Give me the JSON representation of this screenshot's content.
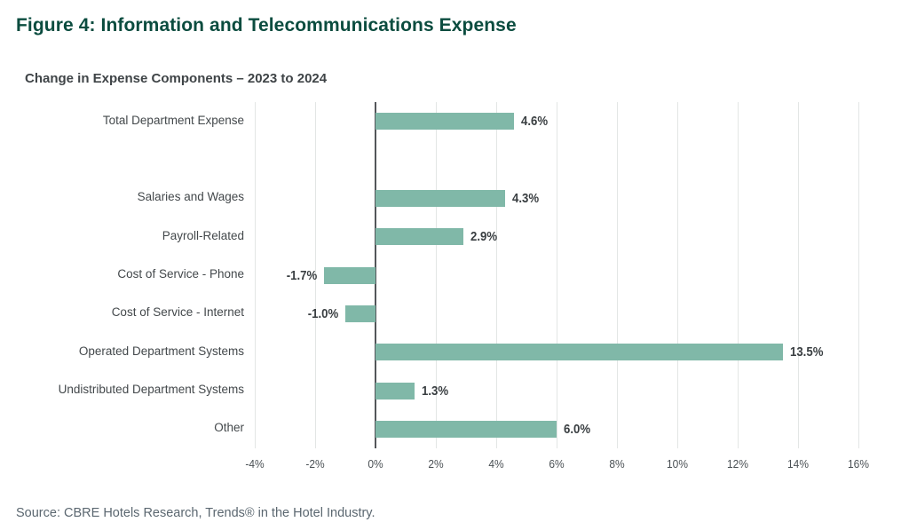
{
  "figure": {
    "title": "Figure 4: Information and Telecommunications Expense",
    "subtitle": "Change in Expense Components – 2023 to 2024",
    "source": "Source: CBRE Hotels Research, Trends® in the Hotel Industry."
  },
  "colors": {
    "background": "#FFFFFF",
    "title_text": "#0B4C3F",
    "subtitle_text": "#3F4447",
    "bar_fill": "#80B8A8",
    "zero_axis_line": "#53565A",
    "gridline": "#E3E6E5",
    "tick_label_text": "#4A5054",
    "category_label_text": "#43484B",
    "value_label_text": "#3A3F42",
    "source_text": "#5B6770"
  },
  "chart_data": {
    "type": "bar",
    "orientation": "horizontal",
    "title": "Change in Expense Components – 2023 to 2024",
    "xlabel": "",
    "ylabel": "",
    "categories": [
      "Total Department Expense",
      "Salaries and Wages",
      "Payroll-Related",
      "Cost of Service - Phone",
      "Cost of Service - Internet",
      "Operated Department Systems",
      "Undistributed Department Systems",
      "Other"
    ],
    "values": [
      4.6,
      4.3,
      2.9,
      -1.7,
      -1.0,
      13.5,
      1.3,
      6.0
    ],
    "value_labels": [
      "4.6%",
      "4.3%",
      "2.9%",
      "-1.7%",
      "-1.0%",
      "13.5%",
      "1.3%",
      "6.0%"
    ],
    "row_slots": [
      0,
      2,
      3,
      4,
      5,
      6,
      7,
      8
    ],
    "n_slots": 9,
    "xlim": [
      -4,
      16
    ],
    "x_ticks": [
      {
        "value": -4,
        "label": "-4%"
      },
      {
        "value": -2,
        "label": "-2%"
      },
      {
        "value": 0,
        "label": "0%"
      },
      {
        "value": 2,
        "label": "2%"
      },
      {
        "value": 4,
        "label": "4%"
      },
      {
        "value": 6,
        "label": "6%"
      },
      {
        "value": 8,
        "label": "8%"
      },
      {
        "value": 10,
        "label": "10%"
      },
      {
        "value": 12,
        "label": "12%"
      },
      {
        "value": 14,
        "label": "14%"
      },
      {
        "value": 16,
        "label": "16%"
      }
    ],
    "grid": "vertical",
    "legend": "none"
  }
}
